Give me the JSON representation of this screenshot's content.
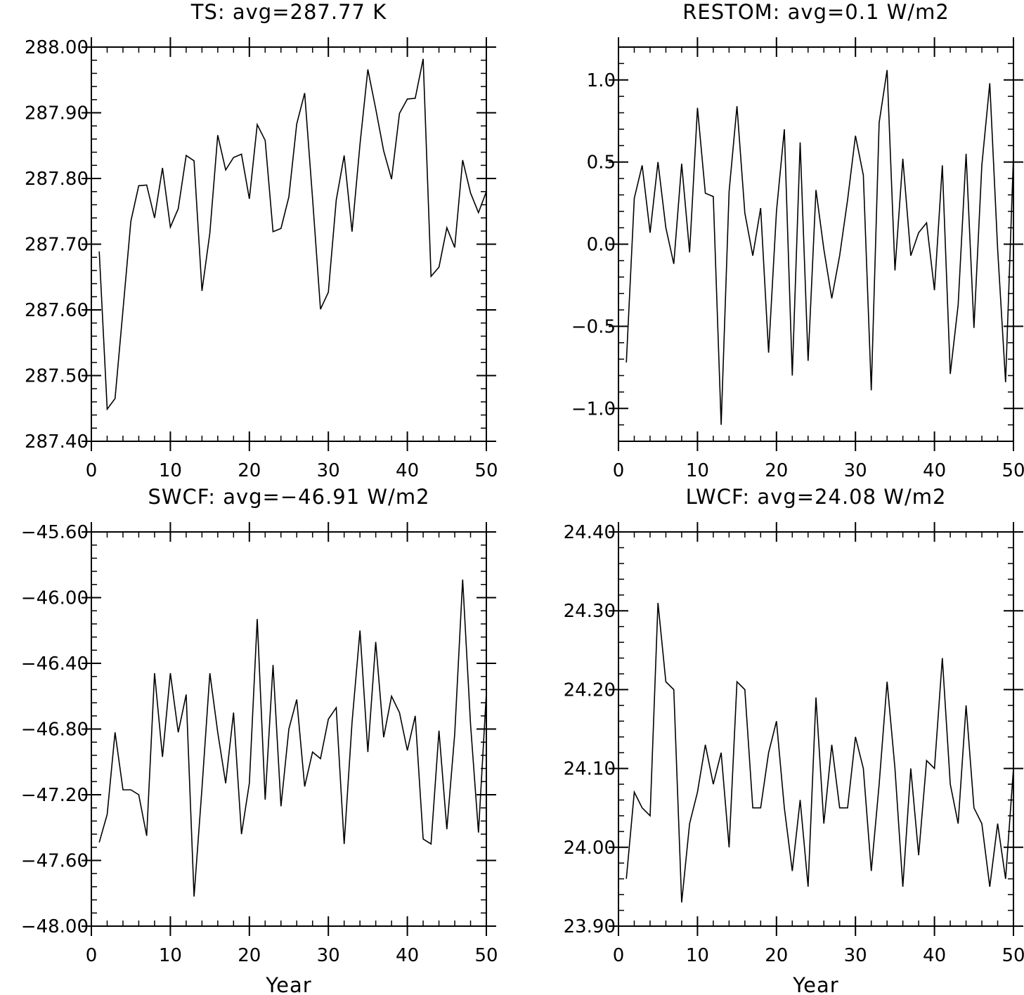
{
  "chart_data": [
    {
      "type": "line",
      "title": "TS: avg=287.77 K",
      "xlabel": "",
      "ylabel": "",
      "xlim": [
        0,
        50
      ],
      "ylim": [
        287.4,
        288.0
      ],
      "x_ticks": [
        0,
        10,
        20,
        30,
        40,
        50
      ],
      "x_tick_labels": [
        "0",
        "10",
        "20",
        "30",
        "40",
        "50"
      ],
      "y_ticks": [
        287.4,
        287.5,
        287.6,
        287.7,
        287.8,
        287.9,
        288.0
      ],
      "y_tick_labels": [
        "287.40",
        "287.50",
        "287.60",
        "287.70",
        "287.80",
        "287.90",
        "288.00"
      ],
      "y_minor_step": 0.02,
      "x_minor_step": 2,
      "grid": false,
      "x": [
        1,
        2,
        3,
        4,
        5,
        6,
        7,
        8,
        9,
        10,
        11,
        12,
        13,
        14,
        15,
        16,
        17,
        18,
        19,
        20,
        21,
        22,
        23,
        24,
        25,
        26,
        27,
        28,
        29,
        30,
        31,
        32,
        33,
        34,
        35,
        36,
        37,
        38,
        39,
        40,
        41,
        42,
        43,
        44,
        45,
        46,
        47,
        48,
        49,
        50
      ],
      "y": [
        287.689,
        287.449,
        287.465,
        287.6,
        287.735,
        287.789,
        287.79,
        287.74,
        287.816,
        287.726,
        287.754,
        287.835,
        287.827,
        287.629,
        287.717,
        287.866,
        287.813,
        287.832,
        287.837,
        287.769,
        287.882,
        287.858,
        287.719,
        287.724,
        287.772,
        287.883,
        287.93,
        287.77,
        287.601,
        287.627,
        287.767,
        287.835,
        287.719,
        287.852,
        287.966,
        287.906,
        287.842,
        287.799,
        287.899,
        287.921,
        287.922,
        287.982,
        287.651,
        287.665,
        287.725,
        287.695,
        287.828,
        287.778,
        287.748,
        287.78
      ]
    },
    {
      "type": "line",
      "title": "RESTOM: avg=0.1 W/m2",
      "xlabel": "",
      "ylabel": "",
      "xlim": [
        0,
        50
      ],
      "ylim": [
        -1.2,
        1.2
      ],
      "x_ticks": [
        0,
        10,
        20,
        30,
        40,
        50
      ],
      "x_tick_labels": [
        "0",
        "10",
        "20",
        "30",
        "40",
        "50"
      ],
      "y_ticks": [
        -1.0,
        -0.5,
        0.0,
        0.5,
        1.0
      ],
      "y_tick_labels": [
        "−1.0",
        "−0.5",
        "0.0",
        "0.5",
        "1.0"
      ],
      "y_minor_step": 0.1,
      "x_minor_step": 2,
      "grid": false,
      "x": [
        1,
        2,
        3,
        4,
        5,
        6,
        7,
        8,
        9,
        10,
        11,
        12,
        13,
        14,
        15,
        16,
        17,
        18,
        19,
        20,
        21,
        22,
        23,
        24,
        25,
        26,
        27,
        28,
        29,
        30,
        31,
        32,
        33,
        34,
        35,
        36,
        37,
        38,
        39,
        40,
        41,
        42,
        43,
        44,
        45,
        46,
        47,
        48,
        49,
        50
      ],
      "y": [
        -0.72,
        0.28,
        0.48,
        0.07,
        0.5,
        0.1,
        -0.12,
        0.49,
        -0.05,
        0.83,
        0.31,
        0.29,
        -1.1,
        0.32,
        0.84,
        0.19,
        -0.07,
        0.22,
        -0.66,
        0.2,
        0.7,
        -0.8,
        0.62,
        -0.71,
        0.33,
        -0.03,
        -0.33,
        -0.07,
        0.27,
        0.66,
        0.42,
        -0.89,
        0.74,
        1.06,
        -0.16,
        0.52,
        -0.07,
        0.07,
        0.13,
        -0.28,
        0.48,
        -0.79,
        -0.37,
        0.55,
        -0.51,
        0.48,
        0.98,
        -0.03,
        -0.84,
        0.54
      ]
    },
    {
      "type": "line",
      "title": "SWCF: avg=−46.91 W/m2",
      "xlabel": "Year",
      "ylabel": "",
      "xlim": [
        0,
        50
      ],
      "ylim": [
        -48.0,
        -45.6
      ],
      "x_ticks": [
        0,
        10,
        20,
        30,
        40,
        50
      ],
      "x_tick_labels": [
        "0",
        "10",
        "20",
        "30",
        "40",
        "50"
      ],
      "y_ticks": [
        -48.0,
        -47.6,
        -47.2,
        -46.8,
        -46.4,
        -46.0,
        -45.6
      ],
      "y_tick_labels": [
        "−48.00",
        "−47.60",
        "−47.20",
        "−46.80",
        "−46.40",
        "−46.00",
        "−45.60"
      ],
      "y_minor_step": 0.08,
      "x_minor_step": 2,
      "grid": false,
      "x": [
        1,
        2,
        3,
        4,
        5,
        6,
        7,
        8,
        9,
        10,
        11,
        12,
        13,
        14,
        15,
        16,
        17,
        18,
        19,
        20,
        21,
        22,
        23,
        24,
        25,
        26,
        27,
        28,
        29,
        30,
        31,
        32,
        33,
        34,
        35,
        36,
        37,
        38,
        39,
        40,
        41,
        42,
        43,
        44,
        45,
        46,
        47,
        48,
        49,
        50
      ],
      "y": [
        -47.49,
        -47.32,
        -46.82,
        -47.17,
        -47.17,
        -47.2,
        -47.45,
        -46.46,
        -46.97,
        -46.46,
        -46.82,
        -46.59,
        -47.82,
        -47.16,
        -46.46,
        -46.82,
        -47.13,
        -46.7,
        -47.44,
        -47.13,
        -46.13,
        -47.23,
        -46.41,
        -47.27,
        -46.8,
        -46.62,
        -47.15,
        -46.94,
        -46.98,
        -46.74,
        -46.67,
        -47.5,
        -46.76,
        -46.2,
        -46.94,
        -46.27,
        -46.85,
        -46.6,
        -46.7,
        -46.93,
        -46.72,
        -47.47,
        -47.5,
        -46.81,
        -47.41,
        -46.83,
        -45.89,
        -46.77,
        -47.43,
        -46.58
      ]
    },
    {
      "type": "line",
      "title": "LWCF: avg=24.08 W/m2",
      "xlabel": "Year",
      "ylabel": "",
      "xlim": [
        0,
        50
      ],
      "ylim": [
        23.9,
        24.4
      ],
      "x_ticks": [
        0,
        10,
        20,
        30,
        40,
        50
      ],
      "x_tick_labels": [
        "0",
        "10",
        "20",
        "30",
        "40",
        "50"
      ],
      "y_ticks": [
        23.9,
        24.0,
        24.1,
        24.2,
        24.3,
        24.4
      ],
      "y_tick_labels": [
        "23.90",
        "24.00",
        "24.10",
        "24.20",
        "24.30",
        "24.40"
      ],
      "y_minor_step": 0.02,
      "x_minor_step": 2,
      "grid": false,
      "x": [
        1,
        2,
        3,
        4,
        5,
        6,
        7,
        8,
        9,
        10,
        11,
        12,
        13,
        14,
        15,
        16,
        17,
        18,
        19,
        20,
        21,
        22,
        23,
        24,
        25,
        26,
        27,
        28,
        29,
        30,
        31,
        32,
        33,
        34,
        35,
        36,
        37,
        38,
        39,
        40,
        41,
        42,
        43,
        44,
        45,
        46,
        47,
        48,
        49,
        50
      ],
      "y": [
        23.96,
        24.07,
        24.05,
        24.04,
        24.31,
        24.21,
        24.2,
        23.93,
        24.03,
        24.07,
        24.13,
        24.08,
        24.12,
        24.0,
        24.21,
        24.2,
        24.05,
        24.05,
        24.12,
        24.16,
        24.05,
        23.97,
        24.06,
        23.95,
        24.19,
        24.03,
        24.13,
        24.05,
        24.05,
        24.14,
        24.1,
        23.97,
        24.08,
        24.21,
        24.1,
        23.95,
        24.1,
        23.99,
        24.11,
        24.1,
        24.24,
        24.08,
        24.03,
        24.18,
        24.05,
        24.03,
        23.95,
        24.03,
        23.96,
        24.1
      ]
    }
  ]
}
